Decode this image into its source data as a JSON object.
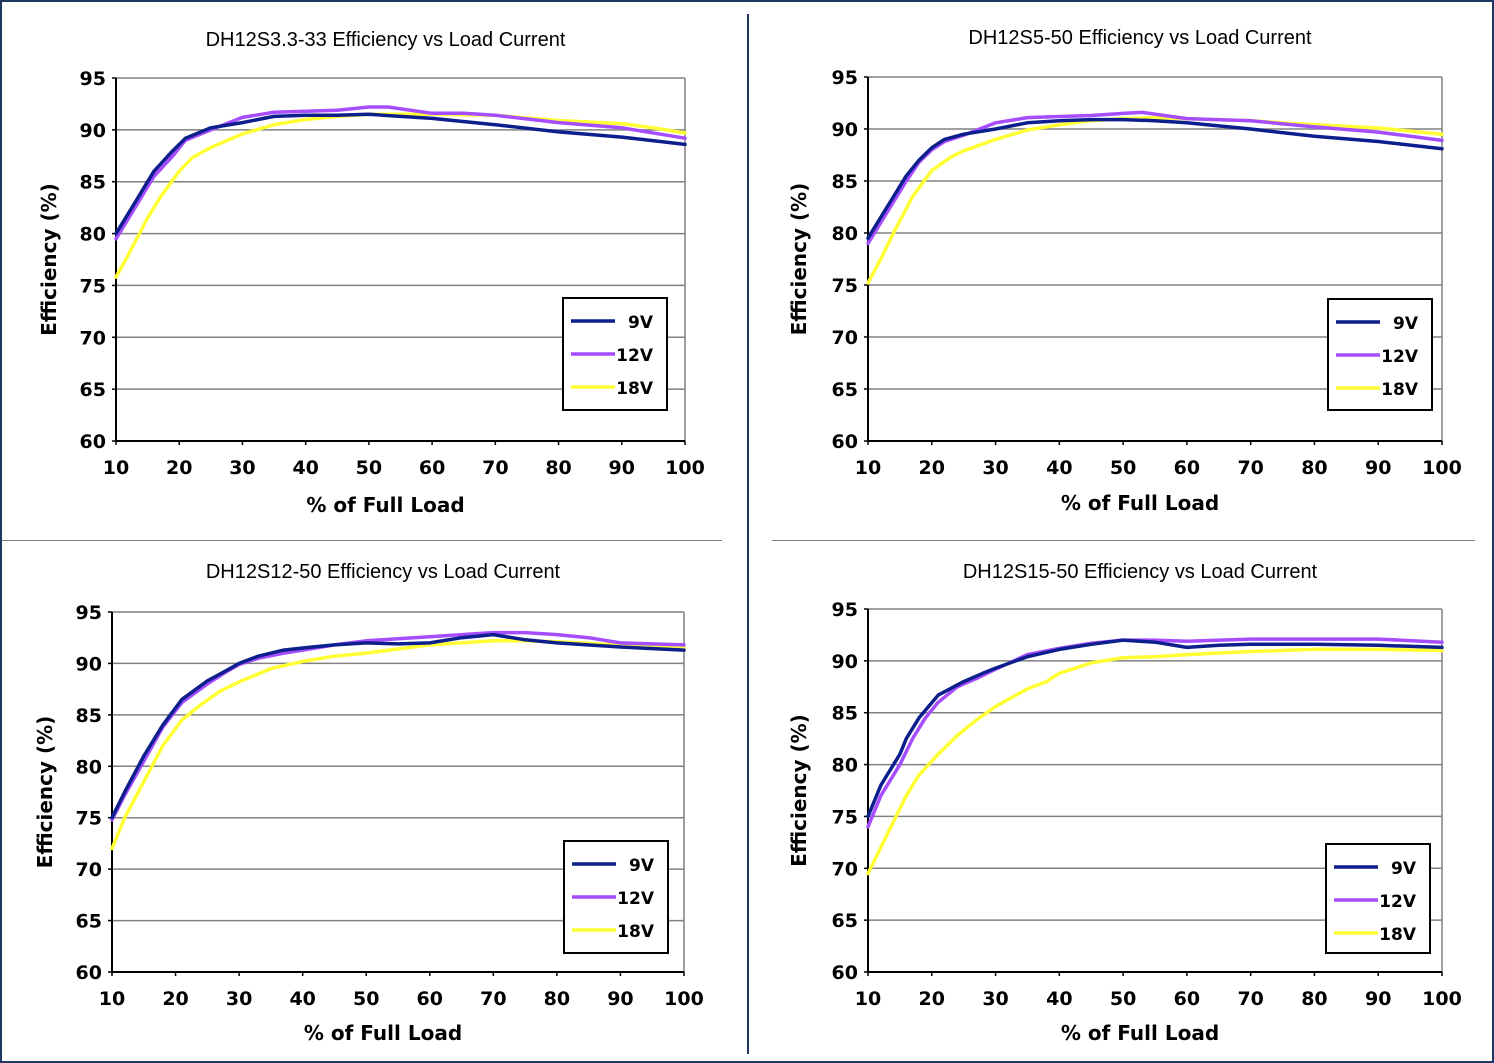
{
  "colors": {
    "9V": "#0d1f8c",
    "12V": "#a64dff",
    "18V": "#ffff33",
    "grid": "#808080",
    "divider": "#1f3864"
  },
  "chart_data": [
    {
      "type": "line",
      "title": "DH12S3.3-33 Efficiency vs Load Current",
      "xlabel": "% of Full Load",
      "ylabel": "Efficiency (%)",
      "xlim": [
        10,
        100
      ],
      "ylim": [
        60,
        95
      ],
      "xticks": [
        10,
        20,
        30,
        40,
        50,
        60,
        70,
        80,
        90,
        100
      ],
      "yticks": [
        60,
        65,
        70,
        75,
        80,
        85,
        90,
        95
      ],
      "grid": true,
      "legend": "right",
      "series": [
        {
          "name": "9V",
          "colorKey": "9V",
          "x": [
            10,
            13,
            16,
            19,
            21,
            25,
            30,
            35,
            40,
            45,
            50,
            55,
            60,
            70,
            80,
            90,
            100
          ],
          "y": [
            80.0,
            83.0,
            86.0,
            88.0,
            89.2,
            90.2,
            90.7,
            91.3,
            91.4,
            91.4,
            91.5,
            91.3,
            91.1,
            90.5,
            89.8,
            89.3,
            88.6
          ]
        },
        {
          "name": "12V",
          "colorKey": "12V",
          "x": [
            10,
            13,
            16,
            19,
            21,
            25,
            30,
            35,
            40,
            45,
            50,
            53,
            60,
            65,
            70,
            80,
            90,
            100
          ],
          "y": [
            79.5,
            82.5,
            85.5,
            87.5,
            89.0,
            90.0,
            91.2,
            91.7,
            91.8,
            91.9,
            92.2,
            92.2,
            91.6,
            91.6,
            91.4,
            90.7,
            90.2,
            89.2
          ]
        },
        {
          "name": "18V",
          "colorKey": "18V",
          "x": [
            10,
            12,
            15,
            17,
            20,
            22,
            25,
            30,
            35,
            40,
            45,
            50,
            55,
            60,
            70,
            80,
            90,
            95,
            100
          ],
          "y": [
            75.8,
            78.0,
            81.5,
            83.5,
            86.0,
            87.3,
            88.3,
            89.6,
            90.5,
            91.0,
            91.3,
            91.5,
            91.5,
            91.5,
            91.4,
            90.9,
            90.6,
            90.2,
            89.7
          ]
        }
      ]
    },
    {
      "type": "line",
      "title": "DH12S5-50 Efficiency vs Load Current",
      "xlabel": "% of Full Load",
      "ylabel": "Efficiency (%)",
      "xlim": [
        10,
        100
      ],
      "ylim": [
        60,
        95
      ],
      "xticks": [
        10,
        20,
        30,
        40,
        50,
        60,
        70,
        80,
        90,
        100
      ],
      "yticks": [
        60,
        65,
        70,
        75,
        80,
        85,
        90,
        95
      ],
      "grid": true,
      "legend": "right",
      "series": [
        {
          "name": "9V",
          "colorKey": "9V",
          "x": [
            10,
            13,
            16,
            18,
            20,
            22,
            25,
            30,
            35,
            40,
            45,
            50,
            55,
            60,
            70,
            80,
            90,
            100
          ],
          "y": [
            79.5,
            82.5,
            85.5,
            87.0,
            88.2,
            89.0,
            89.5,
            90.0,
            90.6,
            90.8,
            90.9,
            90.9,
            90.8,
            90.6,
            90.0,
            89.3,
            88.8,
            88.1
          ]
        },
        {
          "name": "12V",
          "colorKey": "12V",
          "x": [
            10,
            13,
            16,
            18,
            20,
            22,
            25,
            30,
            35,
            40,
            45,
            50,
            53,
            60,
            70,
            80,
            90,
            100
          ],
          "y": [
            79.0,
            82.0,
            85.0,
            86.8,
            88.0,
            88.8,
            89.4,
            90.6,
            91.1,
            91.2,
            91.3,
            91.5,
            91.6,
            91.0,
            90.8,
            90.2,
            89.7,
            88.9
          ]
        },
        {
          "name": "18V",
          "colorKey": "18V",
          "x": [
            10,
            12,
            14,
            17,
            20,
            23,
            25,
            30,
            35,
            40,
            45,
            50,
            55,
            60,
            70,
            80,
            90,
            95,
            100
          ],
          "y": [
            75.2,
            77.5,
            80.0,
            83.5,
            86.0,
            87.3,
            87.9,
            89.0,
            89.9,
            90.4,
            90.8,
            91.0,
            91.1,
            91.0,
            90.8,
            90.4,
            90.1,
            89.8,
            89.5
          ]
        }
      ]
    },
    {
      "type": "line",
      "title": "DH12S12-50 Efficiency vs Load Current",
      "xlabel": "% of Full Load",
      "ylabel": "Efficiency (%)",
      "xlim": [
        10,
        100
      ],
      "ylim": [
        60,
        95
      ],
      "xticks": [
        10,
        20,
        30,
        40,
        50,
        60,
        70,
        80,
        90,
        100
      ],
      "yticks": [
        60,
        65,
        70,
        75,
        80,
        85,
        90,
        95
      ],
      "grid": true,
      "legend": "right",
      "series": [
        {
          "name": "9V",
          "colorKey": "9V",
          "x": [
            10,
            12,
            15,
            18,
            21,
            25,
            28,
            30,
            33,
            37,
            40,
            45,
            50,
            55,
            60,
            65,
            70,
            75,
            80,
            90,
            100
          ],
          "y": [
            75.0,
            77.5,
            81.0,
            84.0,
            86.5,
            88.3,
            89.3,
            90.0,
            90.7,
            91.3,
            91.5,
            91.8,
            92.0,
            91.9,
            92.0,
            92.5,
            92.8,
            92.3,
            92.0,
            91.6,
            91.3
          ]
        },
        {
          "name": "12V",
          "colorKey": "12V",
          "x": [
            10,
            12,
            15,
            18,
            21,
            25,
            28,
            30,
            33,
            37,
            40,
            45,
            50,
            55,
            60,
            65,
            70,
            75,
            80,
            85,
            90,
            100
          ],
          "y": [
            74.8,
            77.2,
            80.5,
            83.8,
            86.2,
            88.0,
            89.2,
            89.9,
            90.5,
            91.0,
            91.3,
            91.8,
            92.2,
            92.4,
            92.6,
            92.8,
            93.0,
            93.0,
            92.8,
            92.5,
            92.0,
            91.8
          ]
        },
        {
          "name": "18V",
          "colorKey": "18V",
          "x": [
            10,
            12,
            15,
            18,
            21,
            24,
            27,
            30,
            35,
            40,
            45,
            50,
            55,
            60,
            65,
            70,
            75,
            80,
            90,
            100
          ],
          "y": [
            72.0,
            75.0,
            78.5,
            82.0,
            84.5,
            86.0,
            87.3,
            88.2,
            89.5,
            90.2,
            90.7,
            91.0,
            91.4,
            91.8,
            92.0,
            92.2,
            92.2,
            92.1,
            91.8,
            91.5
          ]
        }
      ]
    },
    {
      "type": "line",
      "title": "DH12S15-50 Efficiency vs Load Current",
      "xlabel": "% of Full Load",
      "ylabel": "Efficiency (%)",
      "xlim": [
        10,
        100
      ],
      "ylim": [
        60,
        95
      ],
      "xticks": [
        10,
        20,
        30,
        40,
        50,
        60,
        70,
        80,
        90,
        100
      ],
      "yticks": [
        60,
        65,
        70,
        75,
        80,
        85,
        90,
        95
      ],
      "grid": true,
      "legend": "right",
      "series": [
        {
          "name": "9V",
          "colorKey": "9V",
          "x": [
            10,
            12,
            15,
            16,
            18,
            21,
            25,
            28,
            30,
            35,
            40,
            45,
            50,
            55,
            60,
            65,
            70,
            80,
            90,
            100
          ],
          "y": [
            75.0,
            78.0,
            81.0,
            82.5,
            84.5,
            86.7,
            88.0,
            88.8,
            89.3,
            90.4,
            91.1,
            91.6,
            92.0,
            91.8,
            91.3,
            91.5,
            91.6,
            91.6,
            91.5,
            91.3
          ]
        },
        {
          "name": "12V",
          "colorKey": "12V",
          "x": [
            10,
            12,
            15,
            17,
            19,
            21,
            24,
            27,
            30,
            35,
            40,
            45,
            50,
            55,
            60,
            70,
            80,
            90,
            100
          ],
          "y": [
            74.0,
            77.0,
            80.0,
            82.5,
            84.5,
            86.0,
            87.5,
            88.3,
            89.2,
            90.6,
            91.2,
            91.7,
            92.0,
            92.0,
            91.9,
            92.1,
            92.1,
            92.1,
            91.8
          ]
        },
        {
          "name": "18V",
          "colorKey": "18V",
          "x": [
            10,
            12,
            14,
            16,
            18,
            21,
            24,
            27,
            30,
            35,
            38,
            40,
            45,
            50,
            55,
            60,
            70,
            80,
            90,
            100
          ],
          "y": [
            69.5,
            72.0,
            74.5,
            77.0,
            79.0,
            81.0,
            82.8,
            84.3,
            85.6,
            87.3,
            88.0,
            88.8,
            89.8,
            90.3,
            90.4,
            90.6,
            90.9,
            91.1,
            91.1,
            91.0
          ]
        }
      ]
    }
  ]
}
